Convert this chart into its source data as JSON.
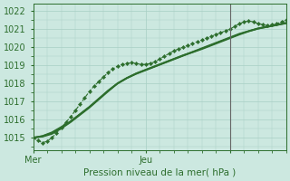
{
  "xlabel": "Pression niveau de la mer( hPa )",
  "bg_color": "#cce8e0",
  "grid_color": "#a8cfc4",
  "line_color": "#2d6e2d",
  "vline_color": "#666666",
  "ylim": [
    1014.3,
    1022.4
  ],
  "xlim": [
    0,
    54
  ],
  "yticks": [
    1015,
    1016,
    1017,
    1018,
    1019,
    1020,
    1021,
    1022
  ],
  "xtick_positions": [
    0,
    24,
    42
  ],
  "xtick_labels": [
    "Mer",
    "Jeu",
    ""
  ],
  "vertical_line_x": 42,
  "series": [
    {
      "x": [
        0,
        1,
        2,
        3,
        4,
        5,
        6,
        7,
        8,
        9,
        10,
        11,
        12,
        13,
        14,
        15,
        16,
        17,
        18,
        19,
        20,
        21,
        22,
        23,
        24,
        25,
        26,
        27,
        28,
        29,
        30,
        31,
        32,
        33,
        34,
        35,
        36,
        37,
        38,
        39,
        40,
        41,
        42,
        43,
        44,
        45,
        46,
        47,
        48,
        49,
        50,
        51,
        52,
        53,
        54
      ],
      "y": [
        1015.0,
        1014.85,
        1014.72,
        1014.8,
        1015.0,
        1015.25,
        1015.55,
        1015.85,
        1016.15,
        1016.5,
        1016.85,
        1017.2,
        1017.55,
        1017.85,
        1018.1,
        1018.35,
        1018.6,
        1018.8,
        1018.95,
        1019.05,
        1019.1,
        1019.15,
        1019.1,
        1019.05,
        1019.05,
        1019.1,
        1019.2,
        1019.35,
        1019.5,
        1019.65,
        1019.8,
        1019.9,
        1020.0,
        1020.1,
        1020.2,
        1020.3,
        1020.4,
        1020.5,
        1020.6,
        1020.7,
        1020.8,
        1020.9,
        1021.0,
        1021.15,
        1021.3,
        1021.4,
        1021.45,
        1021.4,
        1021.3,
        1021.25,
        1021.2,
        1021.25,
        1021.3,
        1021.4,
        1021.5
      ],
      "style": "dashed_marker",
      "linewidth": 0.8,
      "markersize": 2.2
    },
    {
      "x": [
        0,
        2,
        4,
        6,
        8,
        10,
        12,
        14,
        16,
        18,
        20,
        22,
        24,
        26,
        28,
        30,
        32,
        34,
        36,
        38,
        40,
        42,
        44,
        46,
        48,
        50,
        52,
        54
      ],
      "y": [
        1015.0,
        1015.1,
        1015.3,
        1015.6,
        1015.9,
        1016.3,
        1016.7,
        1017.15,
        1017.6,
        1018.0,
        1018.3,
        1018.55,
        1018.75,
        1018.95,
        1019.15,
        1019.35,
        1019.55,
        1019.75,
        1019.95,
        1020.15,
        1020.35,
        1020.55,
        1020.75,
        1020.9,
        1021.05,
        1021.15,
        1021.25,
        1021.35
      ],
      "style": "solid",
      "linewidth": 1.1
    },
    {
      "x": [
        0,
        2,
        4,
        6,
        8,
        10,
        12,
        14,
        16,
        18,
        20,
        22,
        24,
        26,
        28,
        30,
        32,
        34,
        36,
        38,
        40,
        42,
        44,
        46,
        48,
        50,
        52,
        54
      ],
      "y": [
        1015.0,
        1015.05,
        1015.2,
        1015.5,
        1015.85,
        1016.25,
        1016.65,
        1017.1,
        1017.55,
        1017.98,
        1018.28,
        1018.52,
        1018.72,
        1018.92,
        1019.12,
        1019.32,
        1019.52,
        1019.72,
        1019.92,
        1020.12,
        1020.32,
        1020.52,
        1020.72,
        1020.88,
        1021.02,
        1021.12,
        1021.22,
        1021.32
      ],
      "style": "solid",
      "linewidth": 1.1
    },
    {
      "x": [
        0,
        2,
        4,
        6,
        8,
        10,
        12,
        14,
        16,
        18,
        20,
        22,
        24,
        26,
        28,
        30,
        32,
        34,
        36,
        38,
        40,
        42,
        44,
        46,
        48,
        50,
        52,
        54
      ],
      "y": [
        1015.0,
        1015.08,
        1015.25,
        1015.55,
        1015.9,
        1016.3,
        1016.7,
        1017.15,
        1017.6,
        1018.0,
        1018.3,
        1018.55,
        1018.75,
        1018.95,
        1019.15,
        1019.35,
        1019.55,
        1019.72,
        1019.9,
        1020.1,
        1020.3,
        1020.5,
        1020.7,
        1020.88,
        1021.03,
        1021.13,
        1021.23,
        1021.33
      ],
      "style": "solid",
      "linewidth": 1.4
    }
  ]
}
